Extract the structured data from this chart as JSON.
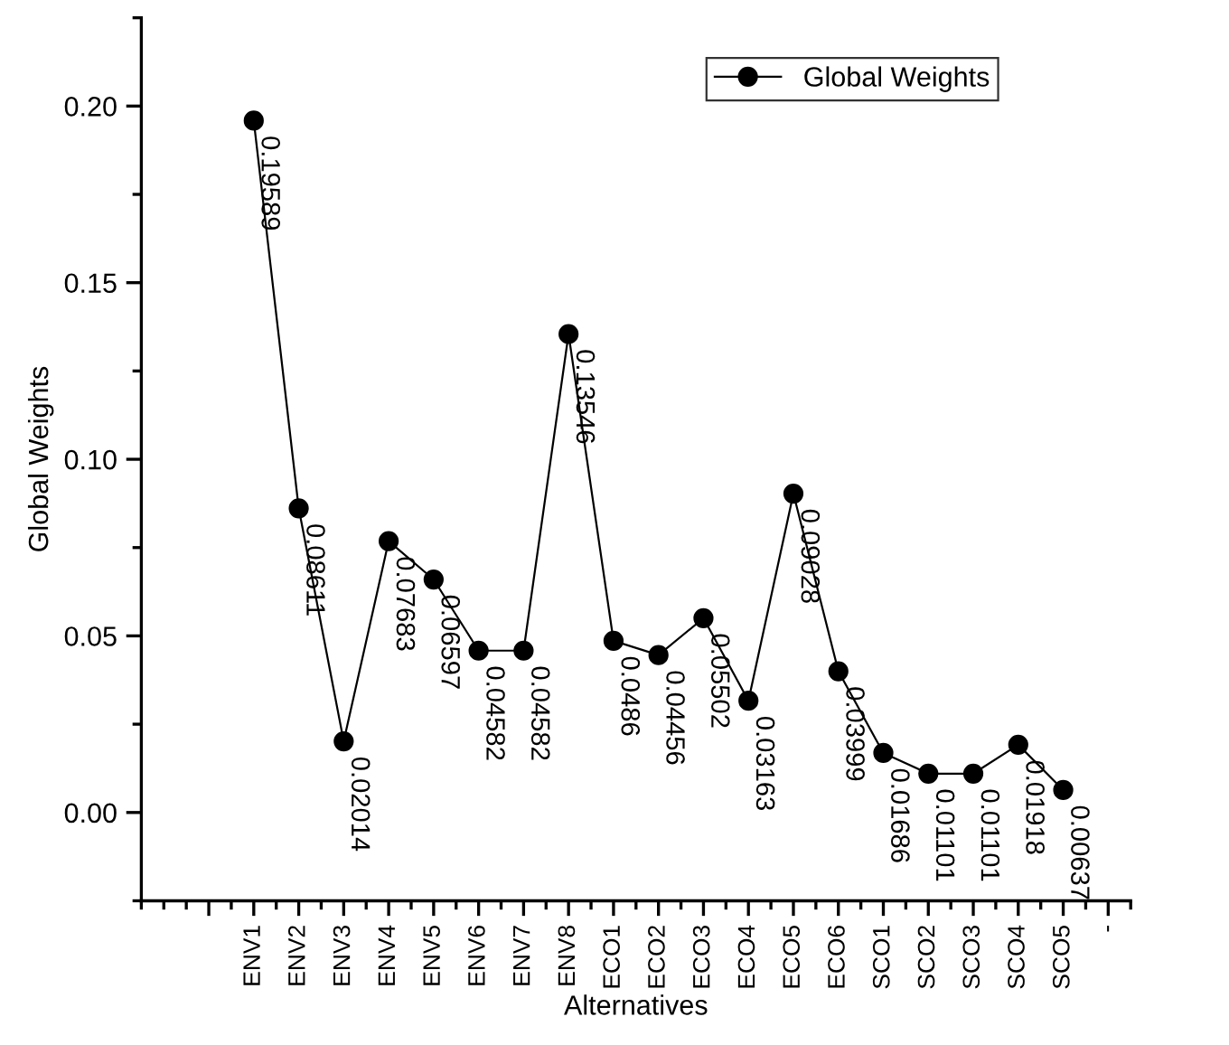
{
  "chart_data": {
    "type": "line",
    "xlabel": "Alternatives",
    "ylabel": "Global Weights",
    "categories": [
      null,
      "ENV1",
      "ENV2",
      "ENV3",
      "ENV4",
      "ENV5",
      "ENV6",
      "ENV7",
      "ENV8",
      "ECO1",
      "ECO2",
      "ECO3",
      "ECO4",
      "ECO5",
      "ECO6",
      "SCO1",
      "SCO2",
      "SCO3",
      "SCO4",
      "SCO5",
      "-"
    ],
    "series": [
      {
        "name": "Global Weights",
        "color": "#000000",
        "values": [
          null,
          0.19589,
          0.08611,
          0.02014,
          0.07683,
          0.06597,
          0.04582,
          0.04582,
          0.13546,
          0.0486,
          0.04456,
          0.05502,
          0.03163,
          0.09028,
          0.03999,
          0.01686,
          0.01101,
          0.01101,
          0.01918,
          0.00637,
          null
        ]
      }
    ],
    "data_labels": true,
    "marker": "circle",
    "line_style": "solid",
    "legend": "top right",
    "grid": false,
    "ylim": [
      -0.025,
      0.225
    ],
    "yticks": [
      {
        "value": -0.025,
        "label": null
      },
      "0.00",
      {
        "value": 0.025,
        "label": null
      },
      "0.05",
      {
        "value": 0.075,
        "label": null
      },
      "0.10",
      {
        "value": 0.125,
        "label": null
      },
      "0.15",
      {
        "value": 0.175,
        "label": null
      },
      "0.20",
      {
        "value": 0.225,
        "label": null
      }
    ]
  }
}
